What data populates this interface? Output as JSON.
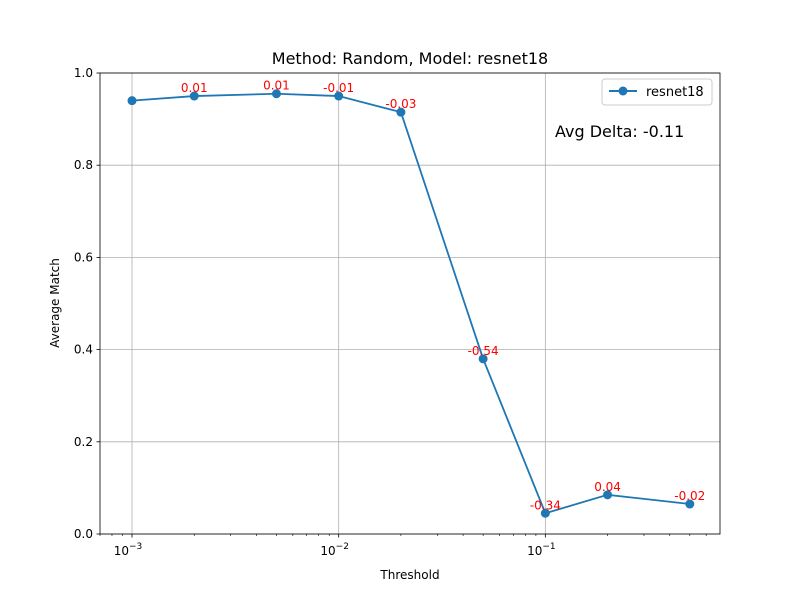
{
  "chart_data": {
    "type": "line",
    "title": "Method: Random, Model: resnet18",
    "xlabel": "Threshold",
    "ylabel": "Average Match",
    "xscale": "log",
    "xlim": [
      0.0007,
      0.7
    ],
    "ylim": [
      0.0,
      1.0
    ],
    "grid": true,
    "legend_position": "top-right",
    "x": [
      0.001,
      0.002,
      0.005,
      0.01,
      0.02,
      0.05,
      0.1,
      0.2,
      0.5
    ],
    "series": [
      {
        "name": "resnet18",
        "color": "#1f77b4",
        "values": [
          0.94,
          0.95,
          0.955,
          0.95,
          0.915,
          0.38,
          0.045,
          0.085,
          0.065
        ]
      }
    ],
    "point_annotations": [
      {
        "index": 1,
        "text": "0.01"
      },
      {
        "index": 2,
        "text": "0.01"
      },
      {
        "index": 3,
        "text": "-0.01"
      },
      {
        "index": 4,
        "text": "-0.03"
      },
      {
        "index": 5,
        "text": "-0.54"
      },
      {
        "index": 6,
        "text": "-0.34"
      },
      {
        "index": 7,
        "text": "0.04"
      },
      {
        "index": 8,
        "text": "-0.02"
      }
    ],
    "annotation_color": "#ff0000",
    "x_ticks": [
      {
        "value": 0.001,
        "base": "10",
        "exp": "−3"
      },
      {
        "value": 0.01,
        "base": "10",
        "exp": "−2"
      },
      {
        "value": 0.1,
        "base": "10",
        "exp": "−1"
      }
    ],
    "y_ticks": [
      "0.0",
      "0.2",
      "0.4",
      "0.6",
      "0.8",
      "1.0"
    ],
    "text_annotation": "Avg Delta: -0.11"
  }
}
